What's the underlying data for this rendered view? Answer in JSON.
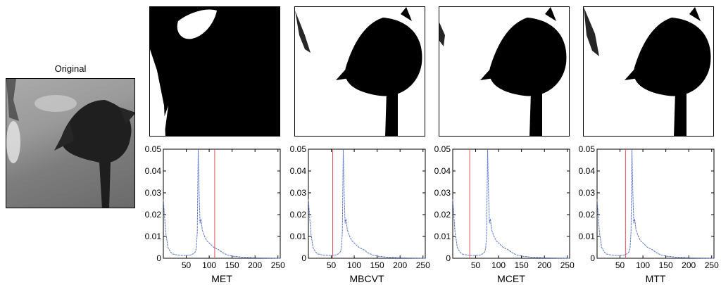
{
  "figure": {
    "original_title": "Original",
    "methods": [
      "MET",
      "MBCVT",
      "MCET",
      "MTT"
    ]
  },
  "chart_data": [
    {
      "type": "line",
      "title": "",
      "xlabel": "MET",
      "ylabel": "",
      "xlim": [
        0,
        255
      ],
      "ylim": [
        0,
        0.05
      ],
      "xticks": [
        50,
        100,
        150,
        200,
        250
      ],
      "yticks": [
        0,
        0.01,
        0.02,
        0.03,
        0.04,
        0.05
      ],
      "threshold": 112,
      "histogram": [
        [
          0,
          0.027
        ],
        [
          2,
          0.021
        ],
        [
          5,
          0.012
        ],
        [
          10,
          0.005
        ],
        [
          15,
          0.003
        ],
        [
          20,
          0.002
        ],
        [
          30,
          0.0015
        ],
        [
          40,
          0.0013
        ],
        [
          50,
          0.0013
        ],
        [
          60,
          0.0015
        ],
        [
          65,
          0.002
        ],
        [
          70,
          0.003
        ],
        [
          72,
          0.005
        ],
        [
          74,
          0.012
        ],
        [
          75,
          0.03
        ],
        [
          76,
          0.05
        ],
        [
          78,
          0.03
        ],
        [
          80,
          0.016
        ],
        [
          82,
          0.018
        ],
        [
          85,
          0.013
        ],
        [
          90,
          0.01
        ],
        [
          95,
          0.008
        ],
        [
          100,
          0.007
        ],
        [
          110,
          0.005
        ],
        [
          120,
          0.004
        ],
        [
          130,
          0.0025
        ],
        [
          140,
          0.0015
        ],
        [
          150,
          0.001
        ],
        [
          170,
          0.0005
        ],
        [
          200,
          0.0002
        ],
        [
          255,
          0
        ]
      ]
    },
    {
      "type": "line",
      "title": "",
      "xlabel": "MBCVT",
      "ylabel": "",
      "xlim": [
        0,
        255
      ],
      "ylim": [
        0,
        0.05
      ],
      "xticks": [
        50,
        100,
        150,
        200,
        250
      ],
      "yticks": [
        0,
        0.01,
        0.02,
        0.03,
        0.04,
        0.05
      ],
      "threshold": 53,
      "histogram": [
        [
          0,
          0.027
        ],
        [
          2,
          0.021
        ],
        [
          5,
          0.012
        ],
        [
          10,
          0.005
        ],
        [
          15,
          0.003
        ],
        [
          20,
          0.002
        ],
        [
          30,
          0.0015
        ],
        [
          40,
          0.0013
        ],
        [
          50,
          0.0013
        ],
        [
          60,
          0.0015
        ],
        [
          65,
          0.002
        ],
        [
          70,
          0.003
        ],
        [
          72,
          0.005
        ],
        [
          74,
          0.012
        ],
        [
          75,
          0.03
        ],
        [
          76,
          0.05
        ],
        [
          78,
          0.03
        ],
        [
          80,
          0.016
        ],
        [
          82,
          0.018
        ],
        [
          85,
          0.013
        ],
        [
          90,
          0.01
        ],
        [
          95,
          0.008
        ],
        [
          100,
          0.007
        ],
        [
          110,
          0.005
        ],
        [
          120,
          0.004
        ],
        [
          130,
          0.0025
        ],
        [
          140,
          0.0015
        ],
        [
          150,
          0.001
        ],
        [
          170,
          0.0005
        ],
        [
          200,
          0.0002
        ],
        [
          255,
          0
        ]
      ]
    },
    {
      "type": "line",
      "title": "",
      "xlabel": "MCET",
      "ylabel": "",
      "xlim": [
        0,
        255
      ],
      "ylim": [
        0,
        0.05
      ],
      "xticks": [
        50,
        100,
        150,
        200,
        250
      ],
      "yticks": [
        0,
        0.01,
        0.02,
        0.03,
        0.04,
        0.05
      ],
      "threshold": 37,
      "histogram": [
        [
          0,
          0.027
        ],
        [
          2,
          0.021
        ],
        [
          5,
          0.012
        ],
        [
          10,
          0.005
        ],
        [
          15,
          0.003
        ],
        [
          20,
          0.002
        ],
        [
          30,
          0.0015
        ],
        [
          40,
          0.0013
        ],
        [
          50,
          0.0013
        ],
        [
          60,
          0.0015
        ],
        [
          65,
          0.002
        ],
        [
          70,
          0.003
        ],
        [
          72,
          0.005
        ],
        [
          74,
          0.012
        ],
        [
          75,
          0.03
        ],
        [
          76,
          0.05
        ],
        [
          78,
          0.03
        ],
        [
          80,
          0.016
        ],
        [
          82,
          0.018
        ],
        [
          85,
          0.013
        ],
        [
          90,
          0.01
        ],
        [
          95,
          0.008
        ],
        [
          100,
          0.007
        ],
        [
          110,
          0.005
        ],
        [
          120,
          0.004
        ],
        [
          130,
          0.0025
        ],
        [
          140,
          0.0015
        ],
        [
          150,
          0.001
        ],
        [
          170,
          0.0005
        ],
        [
          200,
          0.0002
        ],
        [
          255,
          0
        ]
      ]
    },
    {
      "type": "line",
      "title": "",
      "xlabel": "MTT",
      "ylabel": "",
      "xlim": [
        0,
        255
      ],
      "ylim": [
        0,
        0.05
      ],
      "xticks": [
        50,
        100,
        150,
        200,
        250
      ],
      "yticks": [
        0,
        0.01,
        0.02,
        0.03,
        0.04,
        0.05
      ],
      "threshold": 62,
      "histogram": [
        [
          0,
          0.027
        ],
        [
          2,
          0.021
        ],
        [
          5,
          0.012
        ],
        [
          10,
          0.005
        ],
        [
          15,
          0.003
        ],
        [
          20,
          0.002
        ],
        [
          30,
          0.0015
        ],
        [
          40,
          0.0013
        ],
        [
          50,
          0.0013
        ],
        [
          60,
          0.0015
        ],
        [
          65,
          0.002
        ],
        [
          70,
          0.003
        ],
        [
          72,
          0.005
        ],
        [
          74,
          0.012
        ],
        [
          75,
          0.03
        ],
        [
          76,
          0.05
        ],
        [
          78,
          0.03
        ],
        [
          80,
          0.016
        ],
        [
          82,
          0.018
        ],
        [
          85,
          0.013
        ],
        [
          90,
          0.01
        ],
        [
          95,
          0.008
        ],
        [
          100,
          0.007
        ],
        [
          110,
          0.005
        ],
        [
          120,
          0.004
        ],
        [
          130,
          0.0025
        ],
        [
          140,
          0.0015
        ],
        [
          150,
          0.001
        ],
        [
          170,
          0.0005
        ],
        [
          200,
          0.0002
        ],
        [
          255,
          0
        ]
      ]
    }
  ],
  "colors": {
    "histogram_line": "#5a78c8",
    "threshold_line": "#e0555a"
  }
}
